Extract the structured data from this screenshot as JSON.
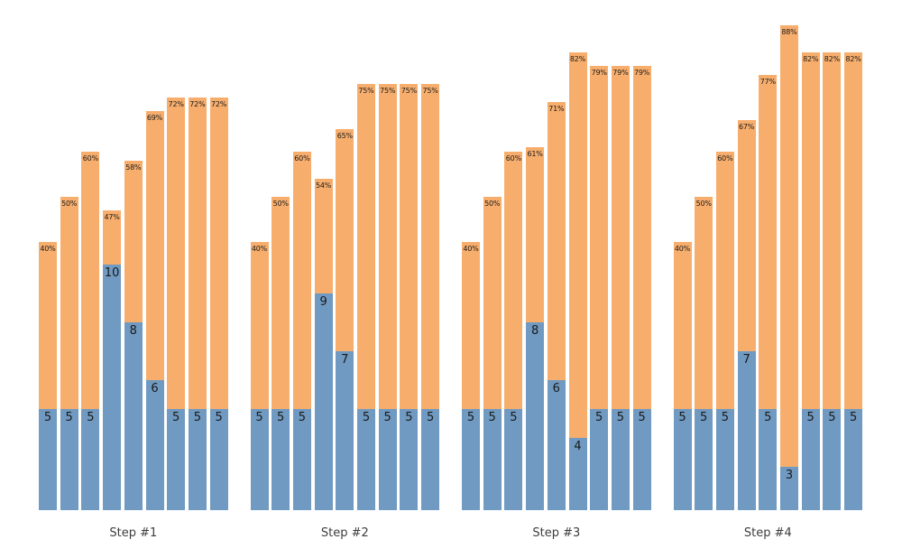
{
  "chart_data": {
    "type": "bar",
    "stacked": true,
    "grid": false,
    "legend": null,
    "axes_visible": false,
    "background": "#ffffff",
    "colors": {
      "value_segment": "#709AC1",
      "pct_segment": "#F7AE6D",
      "segment_label_text": "#1a1a1a",
      "step_label_text": "#3d3d3d"
    },
    "pct_label_suffix": "%",
    "groups": [
      {
        "label": "Step #1",
        "bars": [
          {
            "value": 5,
            "pct": 40
          },
          {
            "value": 5,
            "pct": 50
          },
          {
            "value": 5,
            "pct": 60
          },
          {
            "value": 10,
            "pct": 47
          },
          {
            "value": 8,
            "pct": 58
          },
          {
            "value": 6,
            "pct": 69
          },
          {
            "value": 5,
            "pct": 72
          },
          {
            "value": 5,
            "pct": 72
          },
          {
            "value": 5,
            "pct": 72
          }
        ]
      },
      {
        "label": "Step #2",
        "bars": [
          {
            "value": 5,
            "pct": 40
          },
          {
            "value": 5,
            "pct": 50
          },
          {
            "value": 5,
            "pct": 60
          },
          {
            "value": 9,
            "pct": 54
          },
          {
            "value": 7,
            "pct": 65
          },
          {
            "value": 5,
            "pct": 75
          },
          {
            "value": 5,
            "pct": 75
          },
          {
            "value": 5,
            "pct": 75
          },
          {
            "value": 5,
            "pct": 75
          }
        ]
      },
      {
        "label": "Step #3",
        "bars": [
          {
            "value": 5,
            "pct": 40
          },
          {
            "value": 5,
            "pct": 50
          },
          {
            "value": 5,
            "pct": 60
          },
          {
            "value": 8,
            "pct": 61
          },
          {
            "value": 6,
            "pct": 71
          },
          {
            "value": 4,
            "pct": 82
          },
          {
            "value": 5,
            "pct": 79
          },
          {
            "value": 5,
            "pct": 79
          },
          {
            "value": 5,
            "pct": 79
          }
        ]
      },
      {
        "label": "Step #4",
        "bars": [
          {
            "value": 5,
            "pct": 40
          },
          {
            "value": 5,
            "pct": 50
          },
          {
            "value": 5,
            "pct": 60
          },
          {
            "value": 7,
            "pct": 67
          },
          {
            "value": 5,
            "pct": 77
          },
          {
            "value": 3,
            "pct": 88
          },
          {
            "value": 5,
            "pct": 82
          },
          {
            "value": 5,
            "pct": 82
          },
          {
            "value": 5,
            "pct": 82
          }
        ]
      }
    ]
  }
}
